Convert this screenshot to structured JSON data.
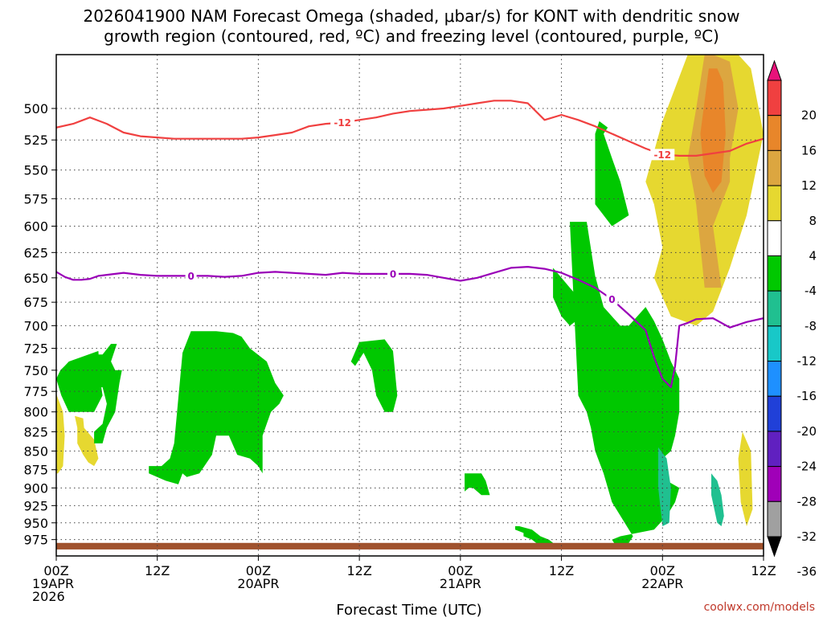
{
  "chart_data": {
    "type": "heatmap",
    "title_line1": "2026041900 NAM Forecast Omega (shaded, μbar/s) for KONT with dendritic snow",
    "title_line2": "growth region (contoured, red, ºC) and freezing level (contoured, purple, ºC)",
    "xlabel": "Forecast Time (UTC)",
    "credit": "coolwx.com/models",
    "x_range_hours": [
      0,
      84
    ],
    "y_range_mb": [
      1000,
      460
    ],
    "y_ticks": [
      500,
      525,
      550,
      575,
      600,
      625,
      650,
      675,
      700,
      725,
      750,
      775,
      800,
      825,
      850,
      875,
      900,
      925,
      950,
      975
    ],
    "x_ticks": [
      {
        "hour": 0,
        "line1": "00Z",
        "line2": "19APR",
        "line3": "2026"
      },
      {
        "hour": 12,
        "line1": "12Z",
        "line2": "",
        "line3": ""
      },
      {
        "hour": 24,
        "line1": "00Z",
        "line2": "20APR",
        "line3": ""
      },
      {
        "hour": 36,
        "line1": "12Z",
        "line2": "",
        "line3": ""
      },
      {
        "hour": 48,
        "line1": "00Z",
        "line2": "21APR",
        "line3": ""
      },
      {
        "hour": 60,
        "line1": "12Z",
        "line2": "",
        "line3": ""
      },
      {
        "hour": 72,
        "line1": "00Z",
        "line2": "22APR",
        "line3": ""
      },
      {
        "hour": 84,
        "line1": "12Z",
        "line2": "",
        "line3": ""
      }
    ],
    "colorbar": {
      "labels": [
        "20",
        "16",
        "12",
        "8",
        "4",
        "-4",
        "-8",
        "-12",
        "-16",
        "-20",
        "-24",
        "-28",
        "-32",
        "-36"
      ],
      "bins": [
        {
          "range": "> 20",
          "color": "#e8127a"
        },
        {
          "range": "16 to 20",
          "color": "#f04040"
        },
        {
          "range": "12 to 16",
          "color": "#e8862a"
        },
        {
          "range": "8 to 12",
          "color": "#dca640"
        },
        {
          "range": "4 to 8",
          "color": "#e6d830"
        },
        {
          "range": "-4 to 4",
          "color": "#ffffff"
        },
        {
          "range": "-8 to -4",
          "color": "#00c800"
        },
        {
          "range": "-12 to -8",
          "color": "#20c090"
        },
        {
          "range": "-16 to -12",
          "color": "#18c8c8"
        },
        {
          "range": "-20 to -16",
          "color": "#1e90ff"
        },
        {
          "range": "-24 to -20",
          "color": "#2040d8"
        },
        {
          "range": "-28 to -24",
          "color": "#6020c0"
        },
        {
          "range": "-32 to -28",
          "color": "#a000b8"
        },
        {
          "range": "-36 to -32",
          "color": "#a0a0a0"
        },
        {
          "range": "< -36",
          "color": "#000000"
        }
      ]
    },
    "isotherm_minus12": {
      "label": "-12",
      "color": "#f04040",
      "hours": [
        0,
        2,
        4,
        6,
        8,
        10,
        12,
        14,
        16,
        18,
        20,
        22,
        24,
        26,
        28,
        30,
        32,
        34,
        36,
        38,
        40,
        42,
        44,
        46,
        48,
        50,
        52,
        54,
        56,
        58,
        60,
        62,
        64,
        66,
        68,
        70,
        72,
        74,
        76,
        78,
        80,
        82,
        84
      ],
      "mb": [
        515,
        512,
        507,
        512,
        519,
        522,
        523,
        524,
        524,
        524,
        524,
        524,
        523,
        521,
        519,
        514,
        512,
        511,
        509,
        507,
        504,
        502,
        501,
        500,
        498,
        496,
        494,
        494,
        496,
        509,
        505,
        509,
        514,
        520,
        526,
        532,
        537,
        538,
        538,
        536,
        534,
        528,
        524
      ]
    },
    "isotherm_zero": {
      "label": "0",
      "color": "#9a00b8",
      "hours": [
        0,
        1,
        2,
        3,
        4,
        5,
        6,
        8,
        10,
        12,
        14,
        16,
        18,
        20,
        22,
        24,
        26,
        28,
        30,
        32,
        34,
        36,
        38,
        40,
        42,
        44,
        46,
        48,
        50,
        52,
        54,
        56,
        58,
        60,
        62,
        64,
        66,
        68,
        70,
        71,
        72,
        73,
        73.5,
        74,
        75,
        76,
        78,
        80,
        82,
        84
      ],
      "mb": [
        644,
        649,
        652,
        652,
        651,
        648,
        647,
        645,
        647,
        648,
        648,
        648,
        648,
        649,
        648,
        645,
        644,
        645,
        646,
        647,
        645,
        646,
        646,
        646,
        646,
        647,
        650,
        653,
        650,
        645,
        640,
        639,
        641,
        645,
        652,
        660,
        672,
        688,
        705,
        735,
        760,
        770,
        745,
        700,
        697,
        693,
        692,
        702,
        696,
        692
      ]
    },
    "omega_regions": [
      {
        "level": "4 to 8",
        "hours": [
          75,
          72,
          70,
          71,
          72,
          71,
          73,
          76,
          78,
          80,
          82,
          84,
          82.5,
          81,
          78,
          76
        ],
        "mb": [
          460,
          510,
          560,
          580,
          620,
          650,
          690,
          700,
          685,
          640,
          590,
          520,
          470,
          460,
          460,
          460
        ]
      },
      {
        "level": "8 to 12",
        "hours": [
          77,
          76,
          75,
          76,
          77,
          79,
          78,
          80,
          80,
          81,
          80,
          78
        ],
        "mb": [
          460,
          500,
          540,
          580,
          660,
          660,
          600,
          560,
          540,
          500,
          465,
          460
        ]
      },
      {
        "level": "12 to 16",
        "hours": [
          77.5,
          76.5,
          77,
          78,
          79,
          79.5,
          79.2,
          78.5
        ],
        "mb": [
          470,
          520,
          555,
          570,
          560,
          520,
          480,
          470
        ]
      },
      {
        "level": "4 to 8",
        "hours": [
          84,
          84.3,
          84.4,
          84.1
        ],
        "mb": [
          480,
          500,
          650,
          680
        ]
      },
      {
        "level": "4 to 8",
        "hours": [
          81.5,
          81,
          81.3,
          82,
          82.7,
          82.5,
          81.5
        ],
        "mb": [
          825,
          860,
          920,
          955,
          930,
          850,
          825
        ]
      },
      {
        "level": "4 to 8",
        "hours": [
          0,
          0.8,
          1,
          0.8,
          0.2,
          0
        ],
        "mb": [
          778,
          800,
          830,
          870,
          880,
          880
        ]
      },
      {
        "level": "4 to 8",
        "hours": [
          2.2,
          3.2,
          3.3,
          4.5,
          5,
          4.5,
          3.8,
          3.2,
          2.5,
          2.5
        ],
        "mb": [
          805,
          808,
          820,
          835,
          860,
          870,
          865,
          855,
          840,
          820
        ]
      },
      {
        "level": "-8 to -4",
        "hours": [
          5.5,
          6.5,
          7.2,
          6.5,
          7,
          7.8,
          7.5,
          7,
          6,
          5.5,
          4.5,
          4.5,
          5.5,
          6,
          5.5,
          4.5,
          4.5,
          5
        ],
        "mb": [
          732,
          720,
          720,
          740,
          750,
          750,
          765,
          800,
          820,
          840,
          840,
          825,
          815,
          790,
          770,
          770,
          745,
          732
        ]
      },
      {
        "level": "-8 to -4",
        "hours": [
          16,
          19,
          21,
          22,
          23,
          25,
          26,
          27,
          26.5,
          25.5,
          24.5,
          24.5,
          24,
          23,
          21.5,
          20.5,
          19.5,
          19,
          18.5,
          17,
          15.5,
          15,
          14.5,
          13,
          11,
          11,
          12.5,
          13.5,
          14,
          15
        ],
        "mb": [
          706,
          706,
          708,
          712,
          725,
          740,
          765,
          780,
          790,
          800,
          830,
          880,
          870,
          860,
          855,
          830,
          830,
          830,
          855,
          880,
          885,
          880,
          895,
          890,
          880,
          870,
          870,
          860,
          840,
          730
        ]
      },
      {
        "level": "-8 to -4",
        "hours": [
          36,
          39,
          40,
          40.5,
          40,
          39,
          38,
          37.5,
          36.5,
          35.5,
          35
        ],
        "mb": [
          718,
          715,
          728,
          780,
          800,
          800,
          780,
          750,
          730,
          745,
          740
        ]
      },
      {
        "level": "-8 to -4",
        "hours": [
          5,
          5.2,
          5.5,
          4.5,
          1.5,
          0.6,
          0,
          0.5,
          1,
          1.5
        ],
        "mb": [
          728,
          760,
          780,
          800,
          800,
          780,
          760,
          750,
          745,
          740
        ]
      },
      {
        "level": "-8 to -4",
        "hours": [
          48,
          50.5,
          51,
          51.5,
          50.5,
          49.5,
          49,
          48.5,
          48.5
        ],
        "mb": [
          880,
          880,
          890,
          910,
          910,
          900,
          900,
          905,
          880
        ]
      },
      {
        "level": "-8 to -4",
        "hours": [
          55,
          56.5,
          57.5,
          58.5,
          59,
          58.5,
          57.5,
          56.5,
          55.5,
          55.5,
          54.5,
          54.5
        ],
        "mb": [
          955,
          960,
          970,
          975,
          980,
          985,
          985,
          975,
          970,
          965,
          960,
          955
        ]
      },
      {
        "level": "-8 to -4",
        "hours": [
          61,
          63,
          64,
          65,
          66,
          67,
          68,
          69,
          70,
          71,
          72,
          73,
          74,
          74,
          73.5,
          73,
          72,
          72,
          71.5,
          72.5,
          74,
          73.5,
          72.5,
          71,
          69,
          67,
          66,
          66.5,
          67.5,
          68,
          68.5,
          66,
          65,
          64,
          63.5,
          63,
          62.5,
          62
        ],
        "mb": [
          596,
          596,
          648,
          680,
          690,
          700,
          700,
          690,
          680,
          695,
          715,
          740,
          760,
          800,
          830,
          850,
          860,
          870,
          880,
          890,
          900,
          920,
          940,
          960,
          965,
          970,
          975,
          985,
          985,
          980,
          970,
          920,
          880,
          850,
          820,
          800,
          790,
          780
        ]
      },
      {
        "level": "-8 to -4",
        "hours": [
          64,
          66,
          68,
          67,
          66,
          65,
          65.5,
          64.5,
          64
        ],
        "mb": [
          580,
          600,
          590,
          560,
          540,
          520,
          515,
          510,
          520
        ]
      },
      {
        "level": "-8 to -4",
        "hours": [
          59,
          60,
          61,
          62,
          62.5,
          61,
          60,
          59
        ],
        "mb": [
          640,
          650,
          660,
          670,
          690,
          700,
          690,
          670
        ]
      },
      {
        "level": "-12 to -8",
        "hours": [
          71.5,
          72.5,
          73,
          72.8,
          72,
          71.5
        ],
        "mb": [
          845,
          860,
          900,
          950,
          955,
          900
        ]
      },
      {
        "level": "-12 to -8",
        "hours": [
          77.8,
          78.5,
          79,
          79.3,
          79,
          78.5,
          77.8
        ],
        "mb": [
          880,
          890,
          910,
          940,
          955,
          950,
          910
        ]
      }
    ],
    "ground": {
      "label": "terrain",
      "color": "#a0522d",
      "top_mb": 980,
      "bottom_mb": 990
    }
  }
}
